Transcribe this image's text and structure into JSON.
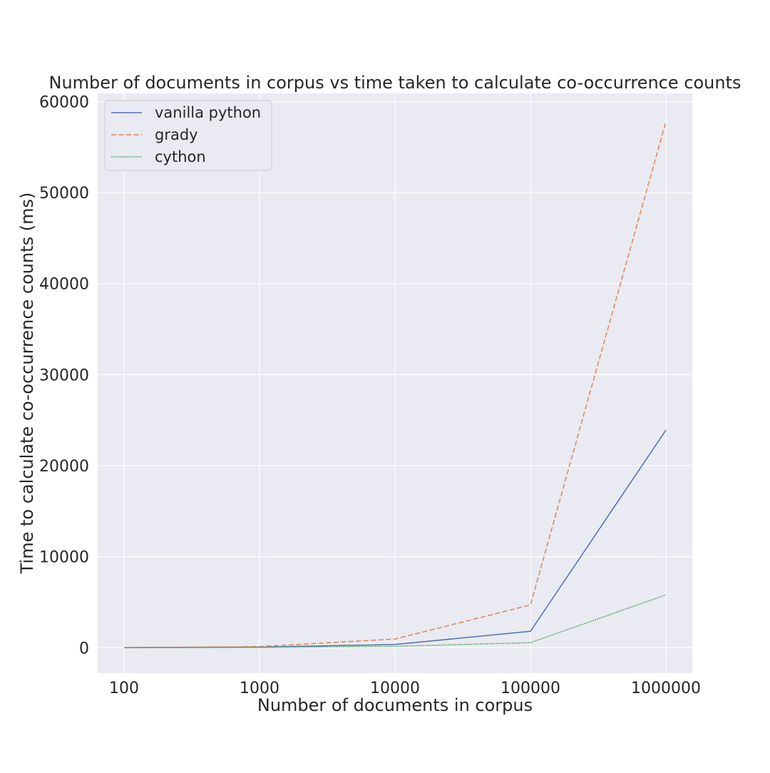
{
  "chart_data": {
    "type": "line",
    "title": "Number of documents in corpus vs time taken to calculate co-occurrence counts",
    "xlabel": "Number of documents in corpus",
    "ylabel": "Time to calculate co-occurrence counts (ms)",
    "x": [
      "100",
      "1000",
      "10000",
      "100000",
      "1000000"
    ],
    "ylim": [
      -2800,
      60900
    ],
    "y_ticks": [
      "0",
      "10000",
      "20000",
      "30000",
      "40000",
      "50000",
      "60000"
    ],
    "grid": true,
    "legend_position": "top-left",
    "series": [
      {
        "name": "vanilla python",
        "values": [
          5,
          60,
          350,
          1800,
          23900
        ],
        "color": "#4c72b0",
        "dash": "solid"
      },
      {
        "name": "grady",
        "values": [
          10,
          120,
          950,
          4700,
          57800
        ],
        "color": "#dd8452",
        "dash": "dashed"
      },
      {
        "name": "cython",
        "values": [
          3,
          25,
          150,
          550,
          5800
        ],
        "color": "#55a868",
        "dash": "dotted"
      }
    ]
  }
}
